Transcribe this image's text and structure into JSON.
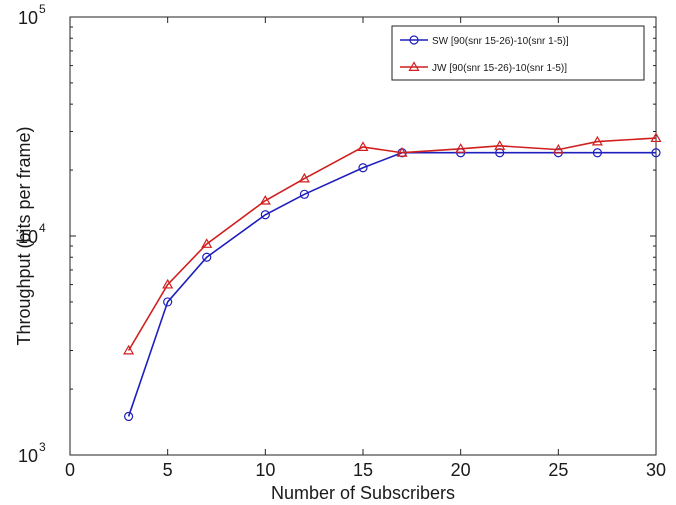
{
  "chart_data": {
    "type": "line",
    "xlabel": "Number of Subscribers",
    "ylabel": "Throughput (bits per frame)",
    "xlim": [
      0,
      30
    ],
    "ylim": [
      1000,
      100000
    ],
    "yscale": "log",
    "xticks": [
      0,
      5,
      10,
      15,
      20,
      25,
      30
    ],
    "xtick_labels": [
      "0",
      "5",
      "10",
      "15",
      "20",
      "25",
      "30"
    ],
    "yticks": [
      {
        "value": 1000,
        "base": "10",
        "exp": "3"
      },
      {
        "value": 10000,
        "base": "10",
        "exp": "4"
      },
      {
        "value": 100000,
        "base": "10",
        "exp": "5"
      }
    ],
    "grid": false,
    "legend_position": "top-right",
    "series": [
      {
        "name": "SW [90(snr 15-26)-10(snr 1-5)]",
        "color": "#1f1fbf",
        "marker": "circle",
        "x": [
          3,
          5,
          7,
          10,
          12,
          15,
          17,
          20,
          22,
          25,
          27,
          30
        ],
        "values": [
          1500,
          5000,
          8000,
          12500,
          15500,
          20500,
          24000,
          24000,
          24000,
          24000,
          24000,
          24000
        ]
      },
      {
        "name": "JW [90(snr 15-26)-10(snr 1-5)]",
        "color": "#d01f1f",
        "marker": "triangle",
        "x": [
          3,
          5,
          7,
          10,
          12,
          15,
          17,
          20,
          22,
          25,
          27,
          30
        ],
        "values": [
          3000,
          6000,
          9200,
          14500,
          18300,
          25500,
          24000,
          25000,
          25800,
          24800,
          27000,
          28000
        ]
      }
    ]
  }
}
